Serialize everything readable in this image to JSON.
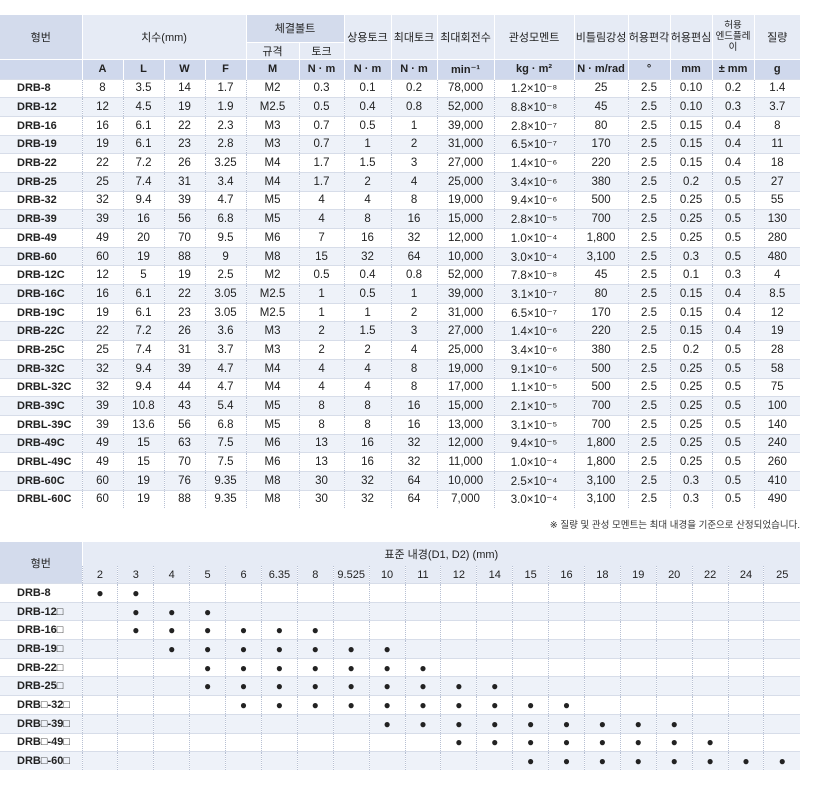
{
  "specs": {
    "h_model": "형번",
    "h_dims": "치수(mm)",
    "h_bolt": "체결볼트",
    "h_bolt_size": "규격",
    "h_bolt_torque": "토크",
    "h_rated_torque": "상용토크",
    "h_max_torque": "최대토크",
    "h_max_rpm": "최대회전수",
    "h_inertia": "관성모멘트",
    "h_stiffness": "비틀림강성",
    "h_misalign_angle": "허용편각",
    "h_misalign_offset": "허용편심",
    "h_end_play": "허용\n엔드플레이",
    "h_mass": "질량",
    "u_A": "A",
    "u_L": "L",
    "u_W": "W",
    "u_F": "F",
    "u_M": "M",
    "u_boltNm": "N · m",
    "u_rated": "N · m",
    "u_max": "N · m",
    "u_rpm": "min⁻¹",
    "u_inertia": "kg · m²",
    "u_stiff": "N · m/rad",
    "u_angle": "°",
    "u_offset": "mm",
    "u_end": "± mm",
    "u_mass": "g",
    "rows": [
      [
        "DRB-8",
        "8",
        "3.5",
        "14",
        "1.7",
        "M2",
        "0.3",
        "0.1",
        "0.2",
        "78,000",
        "1.2×10⁻⁸",
        "25",
        "2.5",
        "0.10",
        "0.2",
        "1.4"
      ],
      [
        "DRB-12",
        "12",
        "4.5",
        "19",
        "1.9",
        "M2.5",
        "0.5",
        "0.4",
        "0.8",
        "52,000",
        "8.8×10⁻⁸",
        "45",
        "2.5",
        "0.10",
        "0.3",
        "3.7"
      ],
      [
        "DRB-16",
        "16",
        "6.1",
        "22",
        "2.3",
        "M3",
        "0.7",
        "0.5",
        "1",
        "39,000",
        "2.8×10⁻⁷",
        "80",
        "2.5",
        "0.15",
        "0.4",
        "8"
      ],
      [
        "DRB-19",
        "19",
        "6.1",
        "23",
        "2.8",
        "M3",
        "0.7",
        "1",
        "2",
        "31,000",
        "6.5×10⁻⁷",
        "170",
        "2.5",
        "0.15",
        "0.4",
        "11"
      ],
      [
        "DRB-22",
        "22",
        "7.2",
        "26",
        "3.25",
        "M4",
        "1.7",
        "1.5",
        "3",
        "27,000",
        "1.4×10⁻⁶",
        "220",
        "2.5",
        "0.15",
        "0.4",
        "18"
      ],
      [
        "DRB-25",
        "25",
        "7.4",
        "31",
        "3.4",
        "M4",
        "1.7",
        "2",
        "4",
        "25,000",
        "3.4×10⁻⁶",
        "380",
        "2.5",
        "0.2",
        "0.5",
        "27"
      ],
      [
        "DRB-32",
        "32",
        "9.4",
        "39",
        "4.7",
        "M5",
        "4",
        "4",
        "8",
        "19,000",
        "9.4×10⁻⁶",
        "500",
        "2.5",
        "0.25",
        "0.5",
        "55"
      ],
      [
        "DRB-39",
        "39",
        "16",
        "56",
        "6.8",
        "M5",
        "4",
        "8",
        "16",
        "15,000",
        "2.8×10⁻⁵",
        "700",
        "2.5",
        "0.25",
        "0.5",
        "130"
      ],
      [
        "DRB-49",
        "49",
        "20",
        "70",
        "9.5",
        "M6",
        "7",
        "16",
        "32",
        "12,000",
        "1.0×10⁻⁴",
        "1,800",
        "2.5",
        "0.25",
        "0.5",
        "280"
      ],
      [
        "DRB-60",
        "60",
        "19",
        "88",
        "9",
        "M8",
        "15",
        "32",
        "64",
        "10,000",
        "3.0×10⁻⁴",
        "3,100",
        "2.5",
        "0.3",
        "0.5",
        "480"
      ],
      [
        "DRB-12C",
        "12",
        "5",
        "19",
        "2.5",
        "M2",
        "0.5",
        "0.4",
        "0.8",
        "52,000",
        "7.8×10⁻⁸",
        "45",
        "2.5",
        "0.1",
        "0.3",
        "4"
      ],
      [
        "DRB-16C",
        "16",
        "6.1",
        "22",
        "3.05",
        "M2.5",
        "1",
        "0.5",
        "1",
        "39,000",
        "3.1×10⁻⁷",
        "80",
        "2.5",
        "0.15",
        "0.4",
        "8.5"
      ],
      [
        "DRB-19C",
        "19",
        "6.1",
        "23",
        "3.05",
        "M2.5",
        "1",
        "1",
        "2",
        "31,000",
        "6.5×10⁻⁷",
        "170",
        "2.5",
        "0.15",
        "0.4",
        "12"
      ],
      [
        "DRB-22C",
        "22",
        "7.2",
        "26",
        "3.6",
        "M3",
        "2",
        "1.5",
        "3",
        "27,000",
        "1.4×10⁻⁶",
        "220",
        "2.5",
        "0.15",
        "0.4",
        "19"
      ],
      [
        "DRB-25C",
        "25",
        "7.4",
        "31",
        "3.7",
        "M3",
        "2",
        "2",
        "4",
        "25,000",
        "3.4×10⁻⁶",
        "380",
        "2.5",
        "0.2",
        "0.5",
        "28"
      ],
      [
        "DRB-32C",
        "32",
        "9.4",
        "39",
        "4.7",
        "M4",
        "4",
        "4",
        "8",
        "19,000",
        "9.1×10⁻⁶",
        "500",
        "2.5",
        "0.25",
        "0.5",
        "58"
      ],
      [
        "DRBL-32C",
        "32",
        "9.4",
        "44",
        "4.7",
        "M4",
        "4",
        "4",
        "8",
        "17,000",
        "1.1×10⁻⁵",
        "500",
        "2.5",
        "0.25",
        "0.5",
        "75"
      ],
      [
        "DRB-39C",
        "39",
        "10.8",
        "43",
        "5.4",
        "M5",
        "8",
        "8",
        "16",
        "15,000",
        "2.1×10⁻⁵",
        "700",
        "2.5",
        "0.25",
        "0.5",
        "100"
      ],
      [
        "DRBL-39C",
        "39",
        "13.6",
        "56",
        "6.8",
        "M5",
        "8",
        "8",
        "16",
        "13,000",
        "3.1×10⁻⁵",
        "700",
        "2.5",
        "0.25",
        "0.5",
        "140"
      ],
      [
        "DRB-49C",
        "49",
        "15",
        "63",
        "7.5",
        "M6",
        "13",
        "16",
        "32",
        "12,000",
        "9.4×10⁻⁵",
        "1,800",
        "2.5",
        "0.25",
        "0.5",
        "240"
      ],
      [
        "DRBL-49C",
        "49",
        "15",
        "70",
        "7.5",
        "M6",
        "13",
        "16",
        "32",
        "11,000",
        "1.0×10⁻⁴",
        "1,800",
        "2.5",
        "0.25",
        "0.5",
        "260"
      ],
      [
        "DRB-60C",
        "60",
        "19",
        "76",
        "9.35",
        "M8",
        "30",
        "32",
        "64",
        "10,000",
        "2.5×10⁻⁴",
        "3,100",
        "2.5",
        "0.3",
        "0.5",
        "410"
      ],
      [
        "DRBL-60C",
        "60",
        "19",
        "88",
        "9.35",
        "M8",
        "30",
        "32",
        "64",
        "7,000",
        "3.0×10⁻⁴",
        "3,100",
        "2.5",
        "0.3",
        "0.5",
        "490"
      ]
    ]
  },
  "footnote": "※ 질량 및 관성 모멘트는 최대 내경을 기준으로 산정되었습니다.",
  "bores": {
    "h_model": "형번",
    "h_title": "표준 내경(D1, D2) (mm)",
    "sizes": [
      "2",
      "3",
      "4",
      "5",
      "6",
      "6.35",
      "8",
      "9.525",
      "10",
      "11",
      "12",
      "14",
      "15",
      "16",
      "18",
      "19",
      "20",
      "22",
      "24",
      "25"
    ],
    "dot": "●",
    "rows": [
      {
        "model": "DRB-8",
        "cols": [
          0,
          1
        ]
      },
      {
        "model": "DRB-12□",
        "cols": [
          1,
          2,
          3
        ]
      },
      {
        "model": "DRB-16□",
        "cols": [
          1,
          2,
          3,
          4,
          5,
          6
        ]
      },
      {
        "model": "DRB-19□",
        "cols": [
          2,
          3,
          4,
          5,
          6,
          7,
          8
        ]
      },
      {
        "model": "DRB-22□",
        "cols": [
          3,
          4,
          5,
          6,
          7,
          8,
          9
        ]
      },
      {
        "model": "DRB-25□",
        "cols": [
          3,
          4,
          5,
          6,
          7,
          8,
          9,
          10,
          11
        ]
      },
      {
        "model": "DRB□-32□",
        "cols": [
          4,
          5,
          6,
          7,
          8,
          9,
          10,
          11,
          12,
          13
        ]
      },
      {
        "model": "DRB□-39□",
        "cols": [
          8,
          9,
          10,
          11,
          12,
          13,
          14,
          15,
          16
        ]
      },
      {
        "model": "DRB□-49□",
        "cols": [
          10,
          11,
          12,
          13,
          14,
          15,
          16,
          17
        ]
      },
      {
        "model": "DRB□-60□",
        "cols": [
          12,
          13,
          14,
          15,
          16,
          17,
          18,
          19
        ]
      }
    ]
  }
}
